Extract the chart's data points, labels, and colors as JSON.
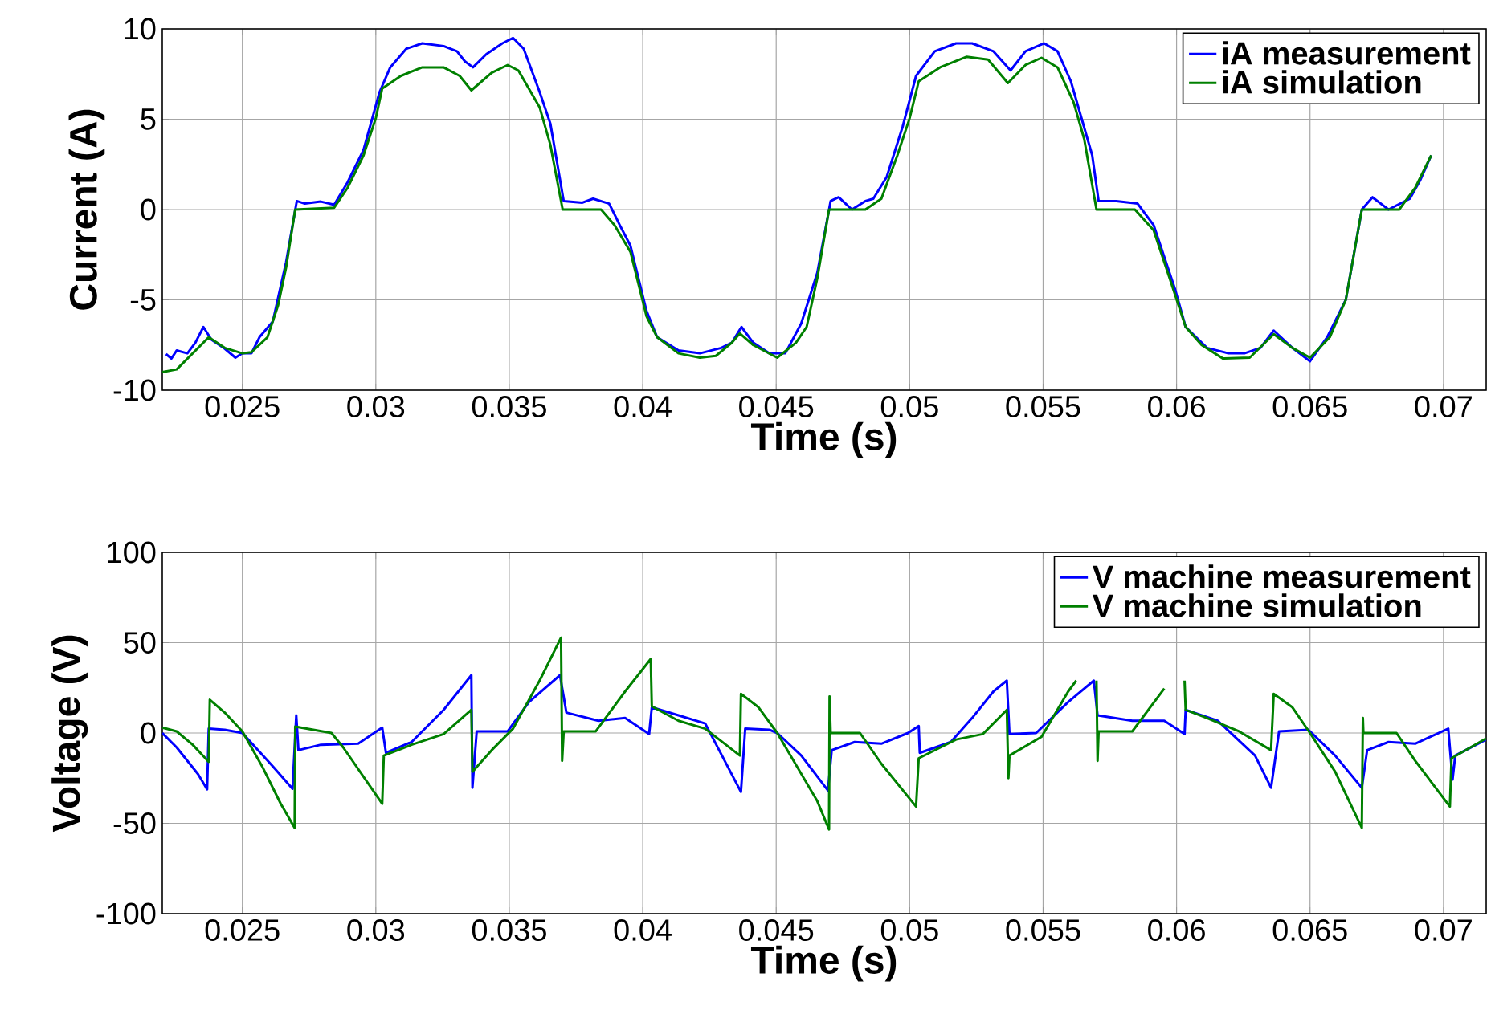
{
  "chart_data": [
    {
      "type": "line",
      "xlabel": "Time (s)",
      "ylabel": "Current (A)",
      "xlim": [
        0.022,
        0.0716
      ],
      "ylim": [
        -10,
        10
      ],
      "xticks": [
        0.025,
        0.03,
        0.035,
        0.04,
        0.045,
        0.05,
        0.055,
        0.06,
        0.065,
        0.07
      ],
      "yticks": [
        -10,
        -5,
        0,
        5,
        10
      ],
      "grid": true,
      "legend": "top right",
      "series": [
        {
          "name": "iA measurement",
          "color": "#0000ff",
          "x": [
            0.02214,
            0.02234,
            0.02254,
            0.02294,
            0.02324,
            0.02354,
            0.02384,
            0.02434,
            0.02474,
            0.025,
            0.02534,
            0.02564,
            0.02614,
            0.02664,
            0.02704,
            0.02734,
            0.02794,
            0.02844,
            0.02894,
            0.02954,
            0.02984,
            0.03014,
            0.03054,
            0.03114,
            0.03174,
            0.03254,
            0.03304,
            0.03334,
            0.03364,
            0.03414,
            0.03474,
            0.03514,
            0.03554,
            0.03614,
            0.03654,
            0.03704,
            0.03774,
            0.03814,
            0.03874,
            0.03914,
            0.03954,
            0.04014,
            0.04054,
            0.04134,
            0.04214,
            0.04294,
            0.04334,
            0.0437,
            0.04414,
            0.04474,
            0.04534,
            0.04594,
            0.04654,
            0.04704,
            0.04734,
            0.04784,
            0.04834,
            0.04864,
            0.04914,
            0.04974,
            0.05024,
            0.05094,
            0.05174,
            0.05234,
            0.05314,
            0.05378,
            0.05434,
            0.05504,
            0.05554,
            0.05604,
            0.05684,
            0.05708,
            0.05774,
            0.05854,
            0.05914,
            0.05994,
            0.06034,
            0.06114,
            0.06194,
            0.06254,
            0.06314,
            0.06364,
            0.06434,
            0.065,
            0.06564,
            0.06634,
            0.06694,
            0.06734,
            0.06794,
            0.06874,
            0.06914,
            0.06954
          ],
          "values": [
            -8.0,
            -8.25,
            -7.8,
            -7.96,
            -7.37,
            -6.5,
            -7.2,
            -7.7,
            -8.2,
            -7.96,
            -7.96,
            -7.07,
            -6.2,
            -2.9,
            0.47,
            0.33,
            0.44,
            0.27,
            1.5,
            3.3,
            4.9,
            6.5,
            7.87,
            8.9,
            9.2,
            9.05,
            8.76,
            8.2,
            7.87,
            8.6,
            9.2,
            9.5,
            8.9,
            6.5,
            4.76,
            0.47,
            0.38,
            0.6,
            0.33,
            -0.86,
            -2.0,
            -5.6,
            -7.07,
            -7.8,
            -7.96,
            -7.66,
            -7.37,
            -6.5,
            -7.37,
            -7.96,
            -7.96,
            -6.3,
            -3.5,
            0.47,
            0.68,
            0.0,
            0.47,
            0.6,
            1.8,
            4.6,
            7.4,
            8.76,
            9.2,
            9.2,
            8.76,
            7.7,
            8.76,
            9.2,
            8.76,
            7.1,
            3.0,
            0.47,
            0.47,
            0.33,
            -0.86,
            -4.4,
            -6.5,
            -7.66,
            -7.96,
            -7.96,
            -7.66,
            -6.7,
            -7.66,
            -8.4,
            -7.07,
            -5.0,
            0.0,
            0.68,
            0.0,
            0.6,
            1.66,
            3.0
          ]
        },
        {
          "name": "iA simulation",
          "color": "#008000",
          "x": [
            0.022,
            0.02254,
            0.02374,
            0.02434,
            0.025,
            0.02534,
            0.02594,
            0.02634,
            0.02664,
            0.02698,
            0.02844,
            0.02894,
            0.02954,
            0.03,
            0.03024,
            0.03094,
            0.03174,
            0.03254,
            0.03314,
            0.03358,
            0.03434,
            0.03494,
            0.03534,
            0.03614,
            0.03654,
            0.037,
            0.03844,
            0.03894,
            0.03954,
            0.04014,
            0.04054,
            0.04134,
            0.04214,
            0.04274,
            0.04334,
            0.04364,
            0.04414,
            0.04504,
            0.04574,
            0.04614,
            0.04654,
            0.04698,
            0.04834,
            0.04894,
            0.04954,
            0.05,
            0.05034,
            0.05114,
            0.05214,
            0.05294,
            0.05368,
            0.05434,
            0.05494,
            0.05554,
            0.05614,
            0.05654,
            0.057,
            0.05844,
            0.05914,
            0.05974,
            0.06034,
            0.06094,
            0.06174,
            0.06274,
            0.06364,
            0.06434,
            0.065,
            0.06574,
            0.06634,
            0.06694,
            0.06834,
            0.06894,
            0.06954
          ],
          "values": [
            -9.0,
            -8.85,
            -7.07,
            -7.66,
            -7.96,
            -7.9,
            -7.07,
            -5.3,
            -3.2,
            0.0,
            0.1,
            1.2,
            3.0,
            5.06,
            6.7,
            7.4,
            7.87,
            7.87,
            7.4,
            6.6,
            7.57,
            8.0,
            7.7,
            5.65,
            3.58,
            0.0,
            0.0,
            -0.86,
            -2.34,
            -5.9,
            -7.07,
            -7.96,
            -8.2,
            -8.1,
            -7.37,
            -6.86,
            -7.5,
            -8.2,
            -7.37,
            -6.5,
            -3.8,
            0.0,
            0.0,
            0.6,
            3.0,
            5.06,
            7.1,
            7.87,
            8.46,
            8.3,
            7.0,
            8.0,
            8.4,
            7.87,
            5.95,
            3.9,
            0.0,
            0.0,
            -1.15,
            -3.8,
            -6.5,
            -7.5,
            -8.25,
            -8.2,
            -6.9,
            -7.66,
            -8.2,
            -7.07,
            -5.0,
            0.0,
            0.0,
            1.2,
            3.0
          ]
        }
      ]
    },
    {
      "type": "line",
      "xlabel": "Time (s)",
      "ylabel": "Voltage (V)",
      "xlim": [
        0.022,
        0.0716
      ],
      "ylim": [
        -100,
        100
      ],
      "xticks": [
        0.025,
        0.03,
        0.035,
        0.04,
        0.045,
        0.05,
        0.055,
        0.06,
        0.065,
        0.07
      ],
      "yticks": [
        -100,
        -50,
        0,
        50,
        100
      ],
      "grid": true,
      "legend": "top right",
      "series": [
        {
          "name": "V machine measurement",
          "color": "#0000ff",
          "x": [
            0.022,
            0.02254,
            0.02334,
            0.02368,
            0.02374,
            0.02434,
            0.025,
            0.02614,
            0.02688,
            0.02702,
            0.0271,
            0.02794,
            0.02934,
            0.03024,
            0.03038,
            0.03134,
            0.03254,
            0.03358,
            0.03362,
            0.03378,
            0.03494,
            0.03574,
            0.0369,
            0.03714,
            0.03834,
            0.03934,
            0.04024,
            0.04034,
            0.04134,
            0.04234,
            0.04368,
            0.04384,
            0.04474,
            0.04504,
            0.04594,
            0.04694,
            0.04708,
            0.04794,
            0.04894,
            0.04994,
            0.05034,
            0.05038,
            0.05154,
            0.05234,
            0.05314,
            0.05364,
            0.05374,
            0.05474,
            0.05594,
            0.0569,
            0.05704,
            0.05834,
            0.05954,
            0.0603,
            0.06034,
            0.06154,
            0.06294,
            0.06354,
            0.06384,
            0.06494,
            0.06594,
            0.06694,
            0.06714,
            0.06794,
            0.06894,
            0.07018,
            0.07034,
            0.07044,
            0.0716
          ],
          "values": [
            0,
            -8,
            -22.8,
            -31.2,
            2.4,
            1.8,
            0,
            -18.4,
            -30.9,
            9.8,
            -9.5,
            -6.5,
            -5.9,
            3.0,
            -11,
            -5,
            12.8,
            32,
            -30.3,
            0.9,
            0.9,
            17.2,
            32,
            11.3,
            6.8,
            8.3,
            -0.6,
            14.2,
            9.8,
            5.3,
            -32.6,
            2.4,
            1.8,
            0,
            -12.5,
            -31.8,
            -9.5,
            -5,
            -5.9,
            0,
            3.9,
            -11,
            -5,
            8.3,
            23,
            29,
            -0.6,
            0,
            17.2,
            29,
            9.8,
            6.8,
            6.8,
            -0.6,
            12.8,
            6.8,
            -12.5,
            -30.3,
            0.9,
            1.8,
            -12.5,
            -30.3,
            -9.5,
            -5,
            -5.9,
            2.4,
            -25.8,
            -12.5,
            -3.6
          ]
        },
        {
          "name": "V machine simulation",
          "color": "#008000",
          "x": [
            0.022,
            0.02254,
            0.02314,
            0.02374,
            0.02378,
            0.02434,
            0.025,
            0.02574,
            0.02644,
            0.02696,
            0.02698,
            0.02834,
            0.02878,
            0.03024,
            0.0303,
            0.03134,
            0.03254,
            0.03358,
            0.03362,
            0.03434,
            0.03514,
            0.03614,
            0.03694,
            0.03698,
            0.03704,
            0.03824,
            0.03934,
            0.0403,
            0.04034,
            0.04134,
            0.04234,
            0.04364,
            0.04368,
            0.04434,
            0.04504,
            0.04654,
            0.04698,
            0.047,
            0.04704,
            0.04814,
            0.04894,
            0.05024,
            0.05034,
            0.05174,
            0.05274,
            0.05364,
            0.0537,
            0.05374,
            0.05494,
            0.05594,
            0.05624,
            0.0566,
            0.057,
            0.05704,
            0.05708,
            0.05834,
            0.05954,
            0.06,
            0.0603,
            0.06034,
            0.06114,
            0.06234,
            0.06354,
            0.06364,
            0.06434,
            0.065,
            0.06594,
            0.06694,
            0.06698,
            0.067,
            0.06824,
            0.06894,
            0.07024,
            0.0703,
            0.0716
          ],
          "values": [
            3.0,
            0.9,
            -6.5,
            -16,
            18.4,
            11.3,
            0.9,
            -18.4,
            -39.2,
            -52.5,
            3.6,
            0,
            -8,
            -39.2,
            -12.5,
            -6.5,
            -0.6,
            12.8,
            -21.4,
            -9.5,
            2.4,
            29.1,
            52.8,
            -15.4,
            0.9,
            0.9,
            23,
            41,
            14.8,
            6.8,
            2.4,
            -12.5,
            21.7,
            14.2,
            0,
            -37.7,
            -53.4,
            20.2,
            0,
            0,
            -17,
            -40.7,
            -14,
            -3.6,
            -0.6,
            12.8,
            -25,
            -12.5,
            -2.1,
            23,
            29,
            null,
            29,
            -15.4,
            0.9,
            0.9,
            24.6,
            null,
            29,
            12.8,
            8.3,
            0.9,
            -9.5,
            21.7,
            14.2,
            0,
            -21.4,
            -52.5,
            8.3,
            0,
            0,
            -15.4,
            -40.7,
            -14,
            -3
          ]
        }
      ]
    }
  ]
}
